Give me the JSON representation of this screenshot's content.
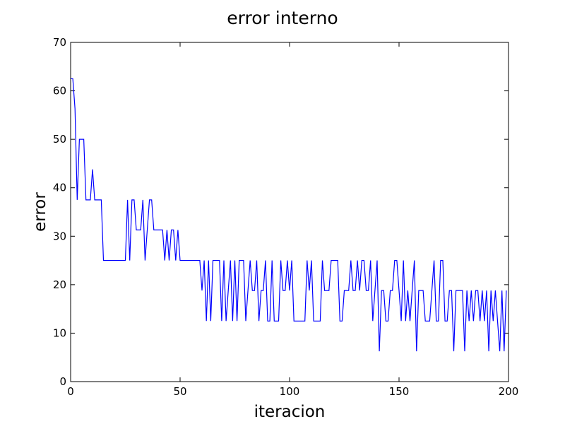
{
  "chart_data": {
    "type": "line",
    "title": "error interno",
    "xlabel": "iteracion",
    "ylabel": "error",
    "xlim": [
      0,
      200
    ],
    "ylim": [
      0,
      70
    ],
    "xticks": [
      0,
      50,
      100,
      150,
      200
    ],
    "yticks": [
      0,
      10,
      20,
      30,
      40,
      50,
      60,
      70
    ],
    "grid": false,
    "series": [
      {
        "color": "#0000ff",
        "x": [
          0,
          1,
          2,
          3,
          4,
          5,
          6,
          7,
          8,
          9,
          10,
          11,
          12,
          13,
          14,
          15,
          16,
          17,
          18,
          19,
          20,
          21,
          22,
          23,
          24,
          25,
          26,
          27,
          28,
          29,
          30,
          31,
          32,
          33,
          34,
          35,
          36,
          37,
          38,
          39,
          40,
          41,
          42,
          43,
          44,
          45,
          46,
          47,
          48,
          49,
          50,
          51,
          52,
          53,
          54,
          55,
          56,
          57,
          58,
          59,
          60,
          61,
          62,
          63,
          64,
          65,
          66,
          67,
          68,
          69,
          70,
          71,
          72,
          73,
          74,
          75,
          76,
          77,
          78,
          79,
          80,
          81,
          82,
          83,
          84,
          85,
          86,
          87,
          88,
          89,
          90,
          91,
          92,
          93,
          94,
          95,
          96,
          97,
          98,
          99,
          100,
          101,
          102,
          103,
          104,
          105,
          106,
          107,
          108,
          109,
          110,
          111,
          112,
          113,
          114,
          115,
          116,
          117,
          118,
          119,
          120,
          121,
          122,
          123,
          124,
          125,
          126,
          127,
          128,
          129,
          130,
          131,
          132,
          133,
          134,
          135,
          136,
          137,
          138,
          139,
          140,
          141,
          142,
          143,
          144,
          145,
          146,
          147,
          148,
          149,
          150,
          151,
          152,
          153,
          154,
          155,
          156,
          157,
          158,
          159,
          160,
          161,
          162,
          163,
          164,
          165,
          166,
          167,
          168,
          169,
          170,
          171,
          172,
          173,
          174,
          175,
          176,
          177,
          178,
          179,
          180,
          181,
          182,
          183,
          184,
          185,
          186,
          187,
          188,
          189,
          190,
          191,
          192,
          193,
          194,
          195,
          196,
          197,
          198,
          199
        ],
        "y": [
          62.5,
          62.5,
          56.3,
          37.5,
          50,
          50,
          50,
          37.5,
          37.5,
          37.5,
          43.8,
          37.5,
          37.5,
          37.5,
          37.5,
          25,
          25,
          25,
          25,
          25,
          25,
          25,
          25,
          25,
          25,
          25,
          37.5,
          25,
          37.5,
          37.5,
          31.3,
          31.3,
          31.3,
          37.5,
          25,
          31.3,
          37.5,
          37.5,
          31.3,
          31.3,
          31.3,
          31.3,
          31.3,
          25,
          31.3,
          25,
          31.3,
          31.3,
          25,
          31.3,
          25,
          25,
          25,
          25,
          25,
          25,
          25,
          25,
          25,
          25,
          18.8,
          25,
          12.5,
          25,
          12.5,
          25,
          25,
          25,
          25,
          12.5,
          25,
          12.5,
          18.8,
          25,
          12.5,
          25,
          12.5,
          25,
          25,
          25,
          12.5,
          18.8,
          25,
          18.8,
          18.8,
          25,
          12.5,
          18.8,
          18.8,
          25,
          12.5,
          12.5,
          25,
          12.5,
          12.5,
          12.5,
          25,
          18.8,
          18.8,
          25,
          18.8,
          25,
          12.5,
          12.5,
          12.5,
          12.5,
          12.5,
          12.5,
          25,
          18.8,
          25,
          12.5,
          12.5,
          12.5,
          12.5,
          25,
          18.8,
          18.8,
          18.8,
          25,
          25,
          25,
          25,
          12.5,
          12.5,
          18.8,
          18.8,
          18.8,
          25,
          18.8,
          18.8,
          25,
          18.8,
          25,
          25,
          18.8,
          18.8,
          25,
          12.5,
          18.8,
          25,
          6.25,
          18.8,
          18.8,
          12.5,
          12.5,
          18.8,
          18.8,
          25,
          25,
          18.8,
          12.5,
          25,
          12.5,
          18.8,
          12.5,
          18.8,
          25,
          6.25,
          18.8,
          18.8,
          18.8,
          12.5,
          12.5,
          12.5,
          18.8,
          25,
          12.5,
          12.5,
          25,
          25,
          12.5,
          12.5,
          18.8,
          18.8,
          6.25,
          18.8,
          18.8,
          18.8,
          18.8,
          6.25,
          18.8,
          12.5,
          18.8,
          12.5,
          18.8,
          18.8,
          12.5,
          18.8,
          12.5,
          18.8,
          6.25,
          18.8,
          12.5,
          18.8,
          12.5,
          6.25,
          18.8,
          6.25,
          18.8
        ]
      }
    ]
  }
}
